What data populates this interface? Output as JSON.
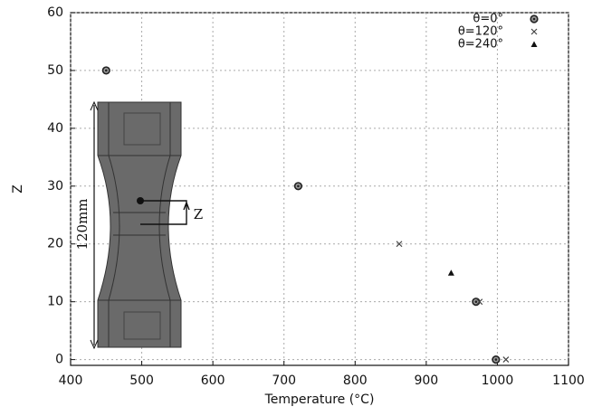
{
  "chart_data": {
    "type": "scatter",
    "x_label": "Temperature (°C)",
    "y_label": "Z",
    "xlim": [
      400,
      1100
    ],
    "xticks": [
      400,
      500,
      600,
      700,
      800,
      900,
      1000,
      1100
    ],
    "ylim": [
      -1,
      60
    ],
    "yticks": [
      0,
      10,
      20,
      30,
      40,
      50,
      60
    ],
    "grid": true,
    "legend": "top-right",
    "series": [
      {
        "name": "θ=0°",
        "marker": "circle",
        "color": "#222222",
        "x": [
          450,
          720,
          970,
          998
        ],
        "values": [
          50,
          30,
          10,
          0
        ]
      },
      {
        "name": "θ=120°",
        "marker": "x",
        "color": "#444444",
        "x": [
          862,
          975,
          1012
        ],
        "values": [
          20,
          10,
          0
        ]
      },
      {
        "name": "θ=240°",
        "marker": "triangle",
        "color": "#111111",
        "x": [
          935
        ],
        "values": [
          15
        ]
      }
    ],
    "inset_labels": [
      "120mm",
      "Z"
    ]
  }
}
